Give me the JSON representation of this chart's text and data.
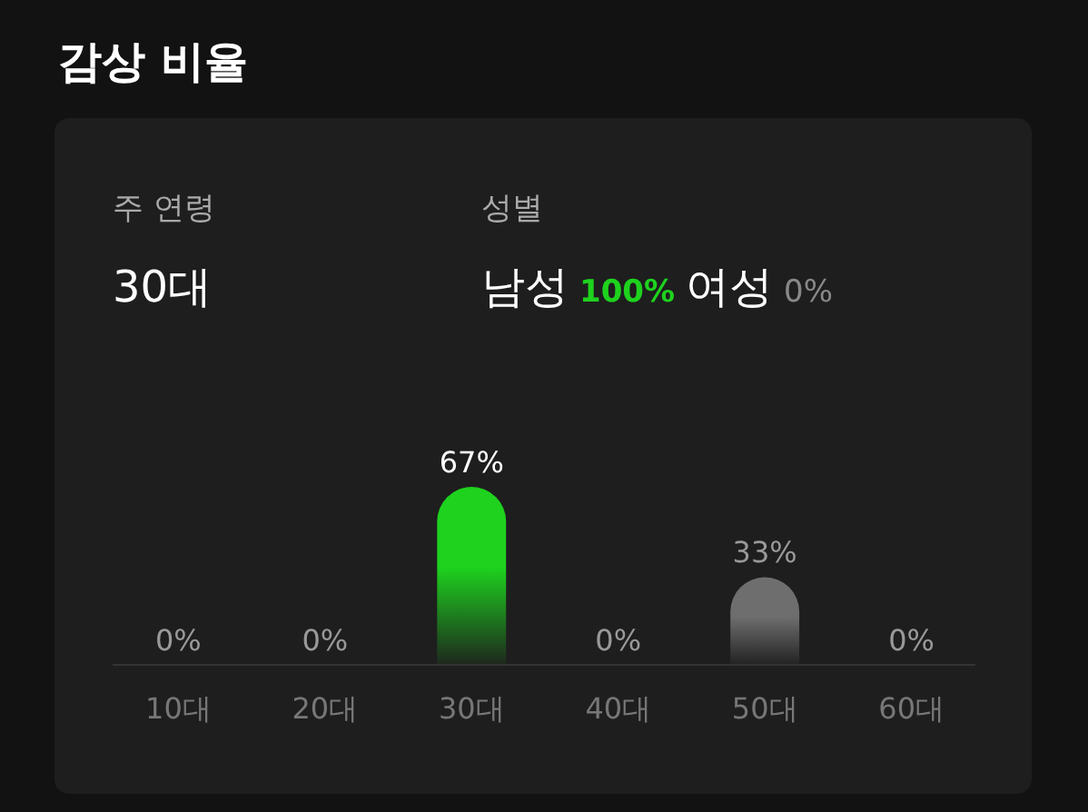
{
  "chart_data": {
    "type": "bar",
    "title": "감상 비율",
    "annotations": [
      "주 연령",
      "30대",
      "성별",
      "남성",
      "100%",
      "여성",
      "0%"
    ],
    "categories": [
      "10대",
      "20대",
      "30대",
      "40대",
      "50대",
      "60대"
    ],
    "values": [
      0,
      0,
      67,
      0,
      33,
      0
    ],
    "colors": [
      "#555555",
      "#555555",
      "#1ed21e",
      "#555555",
      "#6e6e6e",
      "#555555"
    ],
    "value_labels": [
      "0%",
      "0%",
      "67%",
      "0%",
      "33%",
      "0%"
    ],
    "tick_labels": "x"
  }
}
